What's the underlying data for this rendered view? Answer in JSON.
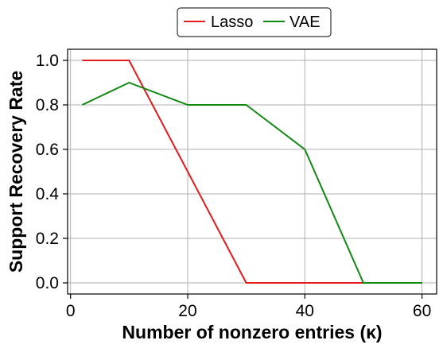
{
  "chart_data": {
    "type": "line",
    "xlabel": "Number of nonzero entries (κ)",
    "ylabel": "Support Recovery Rate",
    "xlim": [
      -0.5,
      62.5
    ],
    "ylim": [
      -0.05,
      1.05
    ],
    "x_ticks": [
      0,
      20,
      40,
      60
    ],
    "y_ticks": [
      0.0,
      0.2,
      0.4,
      0.6,
      0.8,
      1.0
    ],
    "x_tick_labels": [
      "0",
      "20",
      "40",
      "60"
    ],
    "y_tick_labels": [
      "0.0",
      "0.2",
      "0.4",
      "0.6",
      "0.8",
      "1.0"
    ],
    "grid": true,
    "legend_position": "top-center, outside plot",
    "series": [
      {
        "name": "Lasso",
        "color": "#e41a1c",
        "x": [
          2,
          10,
          20,
          30,
          40,
          50,
          60
        ],
        "y": [
          1.0,
          1.0,
          0.5,
          0.0,
          0.0,
          0.0,
          0.0
        ]
      },
      {
        "name": "VAE",
        "color": "#118811",
        "x": [
          2,
          10,
          20,
          30,
          40,
          50,
          60
        ],
        "y": [
          0.8,
          0.9,
          0.8,
          0.8,
          0.6,
          0.0,
          0.0
        ]
      }
    ]
  }
}
